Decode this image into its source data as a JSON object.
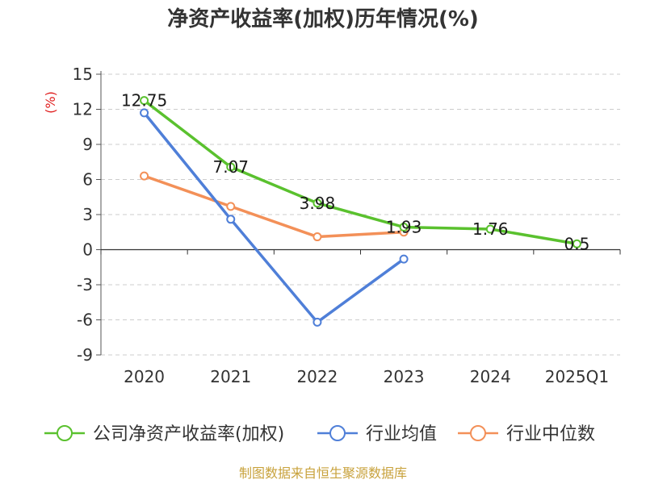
{
  "chart_data": {
    "type": "line",
    "title": "净资产收益率(加权)历年情况(%)",
    "ylabel": "(%)",
    "categories": [
      "2020",
      "2021",
      "2022",
      "2023",
      "2024",
      "2025Q1"
    ],
    "y_ticks": [
      15,
      12,
      9,
      6,
      3,
      0,
      -3,
      -6,
      -9
    ],
    "ylim": [
      -9,
      15
    ],
    "grid": true,
    "legend_position": "bottom",
    "series": [
      {
        "name": "公司净资产收益率(加权)",
        "color": "#5ac12e",
        "values": [
          12.75,
          7.07,
          3.98,
          1.93,
          1.76,
          0.5
        ],
        "labels": [
          "12.75",
          "7.07",
          "3.98",
          "1.93",
          "1.76",
          "0.5"
        ]
      },
      {
        "name": "行业均值",
        "color": "#4f7fd8",
        "values": [
          11.7,
          2.6,
          -6.2,
          -0.8,
          null,
          null
        ]
      },
      {
        "name": "行业中位数",
        "color": "#f39058",
        "values": [
          6.3,
          3.7,
          1.1,
          1.5,
          null,
          null
        ]
      }
    ]
  },
  "source": "制图数据来自恒生聚源数据库"
}
